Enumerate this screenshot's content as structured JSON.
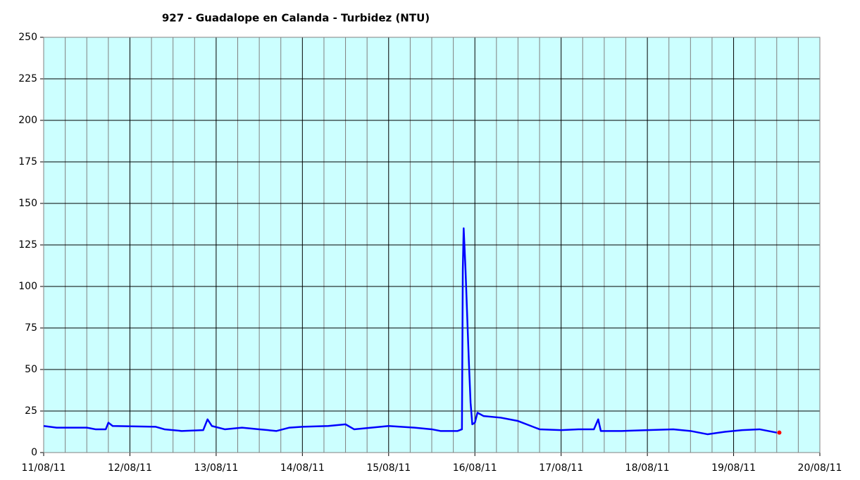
{
  "chart_data": {
    "type": "line",
    "title": "927 - Guadalope en Calanda - Turbidez (NTU)",
    "xlim": [
      0,
      9
    ],
    "xticks": [
      {
        "value": 0,
        "label": "11/08/11"
      },
      {
        "value": 1,
        "label": "12/08/11"
      },
      {
        "value": 2,
        "label": "13/08/11"
      },
      {
        "value": 3,
        "label": "14/08/11"
      },
      {
        "value": 4,
        "label": "15/08/11"
      },
      {
        "value": 5,
        "label": "16/08/11"
      },
      {
        "value": 6,
        "label": "17/08/11"
      },
      {
        "value": 7,
        "label": "18/08/11"
      },
      {
        "value": 8,
        "label": "19/08/11"
      },
      {
        "value": 9,
        "label": "20/08/11"
      }
    ],
    "ylim": [
      0,
      250
    ],
    "yticks": [
      0,
      25,
      50,
      75,
      100,
      125,
      150,
      175,
      200,
      225,
      250
    ],
    "grid": true,
    "series": [
      {
        "color": "#0000ff",
        "x": [
          0,
          0.15,
          0.5,
          0.6,
          0.72,
          0.75,
          0.8,
          1.3,
          1.4,
          1.6,
          1.85,
          1.9,
          1.95,
          2.1,
          2.3,
          2.5,
          2.7,
          2.85,
          3.0,
          3.3,
          3.5,
          3.6,
          3.8,
          4.0,
          4.3,
          4.5,
          4.6,
          4.8,
          4.85,
          4.86,
          4.87,
          4.89,
          4.93,
          4.95,
          4.97,
          5.0,
          5.03,
          5.1,
          5.3,
          5.5,
          5.65,
          5.75,
          6.0,
          6.2,
          6.38,
          6.43,
          6.46,
          6.7,
          7.0,
          7.3,
          7.5,
          7.7,
          7.9,
          8.1,
          8.3,
          8.5
        ],
        "values": [
          16,
          15,
          15,
          14,
          14,
          18,
          16,
          15.5,
          14,
          13,
          13.5,
          20,
          16,
          14,
          15,
          14,
          13,
          15,
          15.5,
          16,
          17,
          14,
          15,
          16,
          15,
          14,
          13,
          13,
          14,
          110,
          135,
          112,
          55,
          30,
          17,
          18,
          24,
          22,
          21,
          19,
          16,
          14,
          13.5,
          14,
          14,
          20,
          13,
          13,
          13.5,
          14,
          13,
          11,
          12.5,
          13.5,
          14,
          12
        ]
      },
      {
        "color": "#ff0000",
        "x": [
          8.53
        ],
        "values": [
          12
        ]
      }
    ]
  }
}
